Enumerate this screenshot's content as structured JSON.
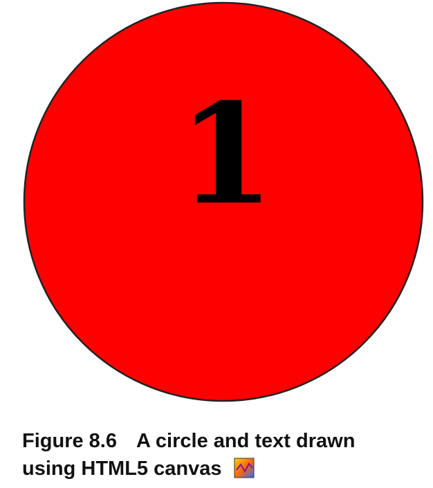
{
  "canvas": {
    "number_text": "1",
    "circle_fill": "#ff0000",
    "circle_stroke": "#222222",
    "text_color": "#000000"
  },
  "caption": {
    "figure_label": "Figure 8.6",
    "line1_text": "A circle and text drawn",
    "line2_text": "using HTML5 canvas",
    "icon": "color-chart-icon"
  }
}
